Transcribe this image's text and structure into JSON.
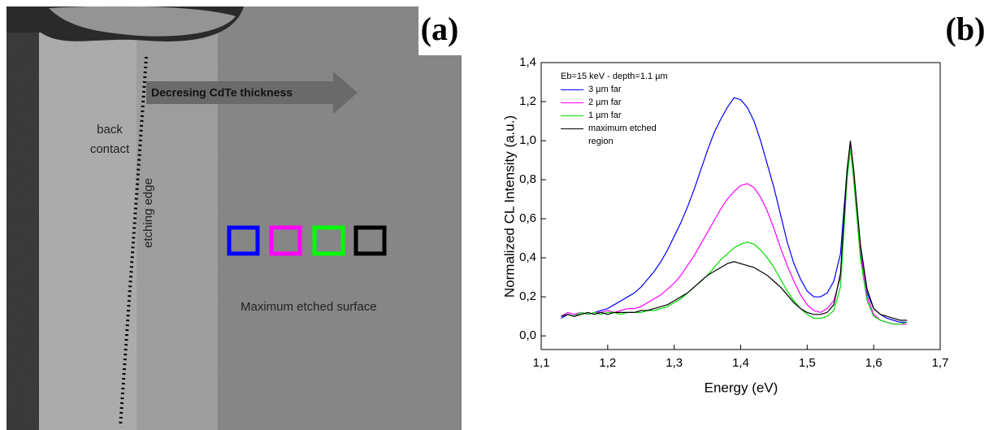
{
  "panel_a": {
    "label": "(a)",
    "arrow_text": "Decresing CdTe thickness",
    "back_contact": [
      "back",
      "contact"
    ],
    "etching_edge": "etching edge",
    "surface_label": "Maximum etched surface"
  },
  "chart_data": {
    "type": "line",
    "panel_label": "(b)",
    "x_label": "Energy  (eV)",
    "y_label": "Normalized CL Intensity  (a.u.)",
    "legend_title": "Eb=15 keV - depth=1.1 µm",
    "xlim": [
      1.1,
      1.7
    ],
    "ylim": [
      -0.07,
      1.4
    ],
    "xticks": [
      {
        "value": 1.1,
        "label": "1,1"
      },
      {
        "value": 1.2,
        "label": "1,2"
      },
      {
        "value": 1.3,
        "label": "1,3"
      },
      {
        "value": 1.4,
        "label": "1,4"
      },
      {
        "value": 1.5,
        "label": "1,5"
      },
      {
        "value": 1.6,
        "label": "1,6"
      },
      {
        "value": 1.7,
        "label": "1,7"
      }
    ],
    "yticks": [
      {
        "value": 0.0,
        "label": "0,0"
      },
      {
        "value": 0.2,
        "label": "0,2"
      },
      {
        "value": 0.4,
        "label": "0,4"
      },
      {
        "value": 0.6,
        "label": "0,6"
      },
      {
        "value": 0.8,
        "label": "0,8"
      },
      {
        "value": 1.0,
        "label": "1,0"
      },
      {
        "value": 1.2,
        "label": "1,2"
      },
      {
        "value": 1.4,
        "label": "1,4"
      }
    ],
    "x": [
      1.13,
      1.14,
      1.15,
      1.16,
      1.17,
      1.18,
      1.19,
      1.2,
      1.21,
      1.22,
      1.23,
      1.24,
      1.25,
      1.26,
      1.27,
      1.28,
      1.29,
      1.3,
      1.31,
      1.32,
      1.33,
      1.34,
      1.35,
      1.36,
      1.37,
      1.38,
      1.39,
      1.4,
      1.41,
      1.42,
      1.43,
      1.44,
      1.45,
      1.46,
      1.47,
      1.48,
      1.49,
      1.5,
      1.51,
      1.52,
      1.53,
      1.54,
      1.55,
      1.56,
      1.565,
      1.57,
      1.58,
      1.59,
      1.6,
      1.61,
      1.62,
      1.63,
      1.64,
      1.65
    ],
    "series": [
      {
        "name": "3 µm far",
        "color": "#0000ff",
        "values": [
          0.09,
          0.11,
          0.1,
          0.12,
          0.11,
          0.12,
          0.13,
          0.14,
          0.16,
          0.18,
          0.2,
          0.22,
          0.25,
          0.29,
          0.33,
          0.38,
          0.44,
          0.51,
          0.58,
          0.66,
          0.75,
          0.85,
          0.95,
          1.04,
          1.11,
          1.17,
          1.22,
          1.21,
          1.17,
          1.1,
          1.0,
          0.88,
          0.76,
          0.62,
          0.48,
          0.37,
          0.29,
          0.23,
          0.2,
          0.2,
          0.22,
          0.28,
          0.42,
          0.85,
          0.98,
          0.8,
          0.42,
          0.22,
          0.14,
          0.11,
          0.09,
          0.08,
          0.07,
          0.07
        ]
      },
      {
        "name": "2 µm far",
        "color": "#ff00ff",
        "values": [
          0.1,
          0.12,
          0.11,
          0.12,
          0.11,
          0.12,
          0.12,
          0.13,
          0.12,
          0.13,
          0.14,
          0.14,
          0.15,
          0.17,
          0.19,
          0.21,
          0.24,
          0.27,
          0.31,
          0.36,
          0.41,
          0.47,
          0.53,
          0.59,
          0.65,
          0.7,
          0.74,
          0.77,
          0.78,
          0.76,
          0.71,
          0.64,
          0.55,
          0.45,
          0.36,
          0.28,
          0.21,
          0.16,
          0.13,
          0.12,
          0.14,
          0.18,
          0.3,
          0.8,
          0.97,
          0.82,
          0.45,
          0.2,
          0.11,
          0.08,
          0.07,
          0.06,
          0.06,
          0.06
        ]
      },
      {
        "name": "1 µm far",
        "color": "#00e000",
        "values": [
          0.1,
          0.11,
          0.1,
          0.12,
          0.11,
          0.12,
          0.11,
          0.12,
          0.12,
          0.11,
          0.12,
          0.12,
          0.12,
          0.13,
          0.13,
          0.14,
          0.15,
          0.17,
          0.19,
          0.22,
          0.25,
          0.28,
          0.31,
          0.35,
          0.39,
          0.42,
          0.45,
          0.47,
          0.48,
          0.47,
          0.44,
          0.4,
          0.35,
          0.29,
          0.23,
          0.18,
          0.14,
          0.11,
          0.09,
          0.09,
          0.1,
          0.13,
          0.25,
          0.8,
          0.96,
          0.8,
          0.4,
          0.18,
          0.1,
          0.08,
          0.07,
          0.06,
          0.06,
          0.07
        ]
      },
      {
        "name": "maximum etched region",
        "color": "#000000",
        "values": [
          0.1,
          0.11,
          0.1,
          0.11,
          0.12,
          0.11,
          0.12,
          0.11,
          0.12,
          0.12,
          0.12,
          0.12,
          0.13,
          0.13,
          0.14,
          0.15,
          0.16,
          0.18,
          0.2,
          0.22,
          0.25,
          0.28,
          0.31,
          0.33,
          0.35,
          0.37,
          0.38,
          0.37,
          0.36,
          0.35,
          0.33,
          0.31,
          0.28,
          0.25,
          0.21,
          0.17,
          0.14,
          0.12,
          0.11,
          0.11,
          0.12,
          0.16,
          0.32,
          0.85,
          1.0,
          0.85,
          0.47,
          0.24,
          0.14,
          0.11,
          0.1,
          0.09,
          0.08,
          0.08
        ]
      }
    ]
  }
}
